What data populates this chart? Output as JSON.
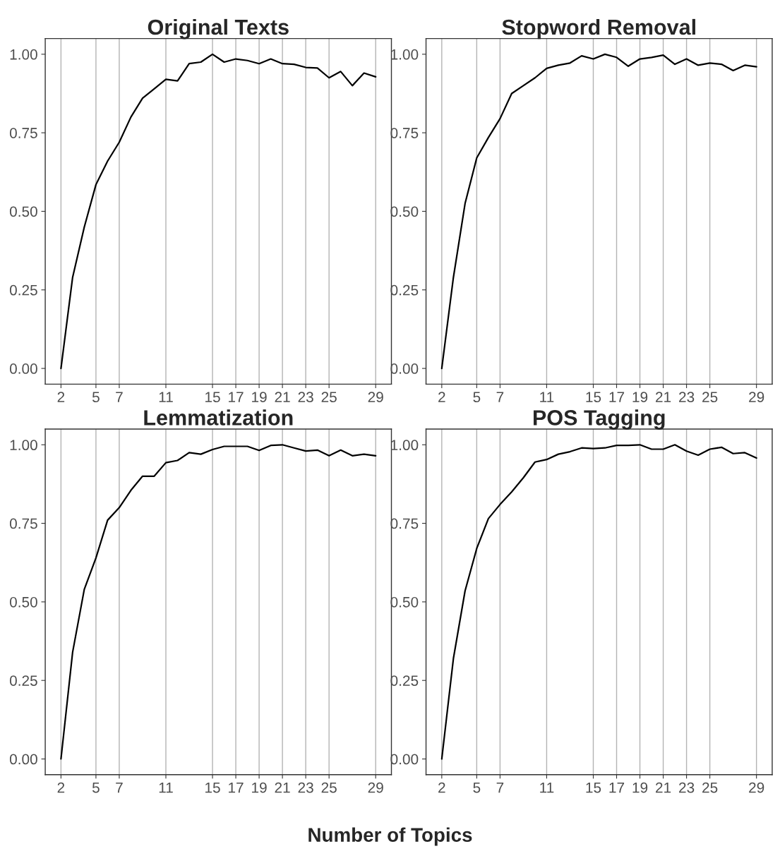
{
  "chart_data": [
    {
      "type": "line",
      "title": "Original Texts",
      "x": [
        2,
        3,
        4,
        5,
        6,
        7,
        8,
        9,
        10,
        11,
        12,
        13,
        14,
        15,
        16,
        17,
        18,
        19,
        20,
        21,
        22,
        23,
        24,
        25,
        26,
        27,
        28,
        29
      ],
      "series": [
        {
          "color": "#000000",
          "values": [
            0.0,
            0.29,
            0.45,
            0.585,
            0.66,
            0.72,
            0.8,
            0.86,
            0.89,
            0.92,
            0.915,
            0.97,
            0.975,
            1.0,
            0.975,
            0.985,
            0.98,
            0.97,
            0.985,
            0.97,
            0.968,
            0.958,
            0.956,
            0.925,
            0.945,
            0.9,
            0.94,
            0.928
          ]
        }
      ],
      "xlim": [
        0.65,
        30.35
      ],
      "ylim": [
        -0.05,
        1.05
      ],
      "xticks": [
        2,
        5,
        7,
        11,
        15,
        17,
        19,
        21,
        23,
        25,
        29
      ],
      "yticks": [
        {
          "value": 0,
          "label": "0.00"
        },
        {
          "value": 0.25,
          "label": "0.25"
        },
        {
          "value": 0.5,
          "label": "0.50"
        },
        {
          "value": 0.75,
          "label": "0.75"
        },
        {
          "value": 1,
          "label": "1.00"
        }
      ],
      "grid": "x"
    },
    {
      "type": "line",
      "title": "Stopword Removal",
      "x": [
        2,
        3,
        4,
        5,
        6,
        7,
        8,
        9,
        10,
        11,
        12,
        13,
        14,
        15,
        16,
        17,
        18,
        19,
        20,
        21,
        22,
        23,
        24,
        25,
        26,
        27,
        28,
        29
      ],
      "series": [
        {
          "color": "#000000",
          "values": [
            0.0,
            0.29,
            0.525,
            0.67,
            0.735,
            0.795,
            0.875,
            0.9,
            0.925,
            0.955,
            0.965,
            0.972,
            0.995,
            0.985,
            1.0,
            0.99,
            0.962,
            0.985,
            0.99,
            0.997,
            0.968,
            0.985,
            0.965,
            0.972,
            0.968,
            0.948,
            0.965,
            0.96
          ]
        }
      ],
      "xlim": [
        0.65,
        30.35
      ],
      "ylim": [
        -0.05,
        1.05
      ],
      "xticks": [
        2,
        5,
        7,
        11,
        15,
        17,
        19,
        21,
        23,
        25,
        29
      ],
      "yticks": [
        {
          "value": 0,
          "label": "0.00"
        },
        {
          "value": 0.25,
          "label": "0.25"
        },
        {
          "value": 0.5,
          "label": "0.50"
        },
        {
          "value": 0.75,
          "label": "0.75"
        },
        {
          "value": 1,
          "label": "1.00"
        }
      ],
      "grid": "x"
    },
    {
      "type": "line",
      "title": "Lemmatization",
      "x": [
        2,
        3,
        4,
        5,
        6,
        7,
        8,
        9,
        10,
        11,
        12,
        13,
        14,
        15,
        16,
        17,
        18,
        19,
        20,
        21,
        22,
        23,
        24,
        25,
        26,
        27,
        28,
        29
      ],
      "series": [
        {
          "color": "#000000",
          "values": [
            0.0,
            0.34,
            0.54,
            0.64,
            0.76,
            0.8,
            0.855,
            0.9,
            0.9,
            0.943,
            0.95,
            0.975,
            0.97,
            0.985,
            0.995,
            0.995,
            0.995,
            0.982,
            0.998,
            1.0,
            0.99,
            0.98,
            0.983,
            0.965,
            0.983,
            0.965,
            0.97,
            0.965
          ]
        }
      ],
      "xlim": [
        0.65,
        30.35
      ],
      "ylim": [
        -0.05,
        1.05
      ],
      "xticks": [
        2,
        5,
        7,
        11,
        15,
        17,
        19,
        21,
        23,
        25,
        29
      ],
      "yticks": [
        {
          "value": 0,
          "label": "0.00"
        },
        {
          "value": 0.25,
          "label": "0.25"
        },
        {
          "value": 0.5,
          "label": "0.50"
        },
        {
          "value": 0.75,
          "label": "0.75"
        },
        {
          "value": 1,
          "label": "1.00"
        }
      ],
      "grid": "x",
      "xlabel": "Number of Topics"
    },
    {
      "type": "line",
      "title": "POS Tagging",
      "x": [
        2,
        3,
        4,
        5,
        6,
        7,
        8,
        9,
        10,
        11,
        12,
        13,
        14,
        15,
        16,
        17,
        18,
        19,
        20,
        21,
        22,
        23,
        24,
        25,
        26,
        27,
        28,
        29
      ],
      "series": [
        {
          "color": "#000000",
          "values": [
            0.0,
            0.32,
            0.535,
            0.67,
            0.765,
            0.81,
            0.85,
            0.895,
            0.945,
            0.953,
            0.97,
            0.978,
            0.99,
            0.988,
            0.99,
            0.998,
            0.998,
            1.0,
            0.986,
            0.986,
            1.0,
            0.98,
            0.967,
            0.986,
            0.992,
            0.972,
            0.975,
            0.958
          ]
        }
      ],
      "xlim": [
        0.65,
        30.35
      ],
      "ylim": [
        -0.05,
        1.05
      ],
      "xticks": [
        2,
        5,
        7,
        11,
        15,
        17,
        19,
        21,
        23,
        25,
        29
      ],
      "yticks": [
        {
          "value": 0,
          "label": "0.00"
        },
        {
          "value": 0.25,
          "label": "0.25"
        },
        {
          "value": 0.5,
          "label": "0.50"
        },
        {
          "value": 0.75,
          "label": "0.75"
        },
        {
          "value": 1,
          "label": "1.00"
        }
      ],
      "grid": "x"
    }
  ]
}
